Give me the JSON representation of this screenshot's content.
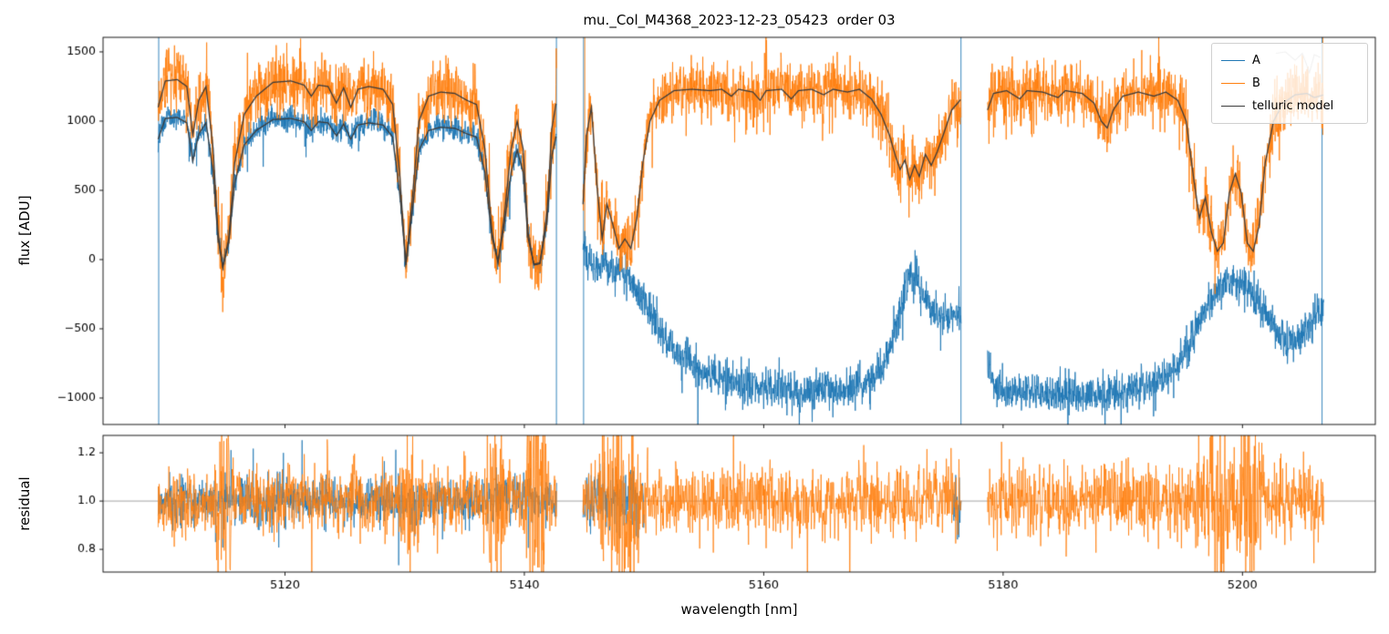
{
  "chart_data": {
    "type": "line",
    "title": "mu._Col_M4368_2023-12-23_05423  order 03",
    "xlabel": "wavelength [nm]",
    "xlim": [
      5104.8,
      5211.1
    ],
    "xticks": [
      {
        "v": 5120,
        "label": "5120"
      },
      {
        "v": 5140,
        "label": "5140"
      },
      {
        "v": 5160,
        "label": "5160"
      },
      {
        "v": 5180,
        "label": "5180"
      },
      {
        "v": 5200,
        "label": "5200"
      }
    ],
    "panels": {
      "flux": {
        "ylabel": "flux [ADU]",
        "ylim": [
          -1191,
          1605
        ],
        "yticks": [
          {
            "v": -1000,
            "label": "−1000"
          },
          {
            "v": -500,
            "label": "−500"
          },
          {
            "v": 0,
            "label": "0"
          },
          {
            "v": 500,
            "label": "500"
          },
          {
            "v": 1000,
            "label": "1000"
          },
          {
            "v": 1500,
            "label": "1500"
          }
        ]
      },
      "residual": {
        "ylabel": "residual",
        "ylim": [
          0.706,
          1.272
        ],
        "yticks": [
          {
            "v": 0.8,
            "label": "0.8"
          },
          {
            "v": 1.0,
            "label": "1.0"
          },
          {
            "v": 1.2,
            "label": "1.2"
          }
        ],
        "reference_line": 1.0
      }
    },
    "legend": [
      {
        "label": "A",
        "color": "#1f77b4"
      },
      {
        "label": "B",
        "color": "#ff7f0e"
      },
      {
        "label": "telluric model",
        "color": "#3b3b3b"
      }
    ],
    "segments": [
      {
        "xrange": [
          5109.4,
          5142.7
        ],
        "b_sigma": 115,
        "a_sigma": 45,
        "a_scale": 0.79,
        "b_env": [
          [
            5109.4,
            1100
          ],
          [
            5110.0,
            1290
          ],
          [
            5111.0,
            1300
          ],
          [
            5111.8,
            1250
          ],
          [
            5112.3,
            900
          ],
          [
            5112.8,
            1150
          ],
          [
            5113.4,
            1250
          ],
          [
            5114.0,
            800
          ],
          [
            5114.4,
            200
          ],
          [
            5114.8,
            -60
          ],
          [
            5115.3,
            150
          ],
          [
            5115.8,
            700
          ],
          [
            5116.6,
            1050
          ],
          [
            5117.6,
            1180
          ],
          [
            5119.0,
            1280
          ],
          [
            5120.5,
            1290
          ],
          [
            5121.6,
            1260
          ],
          [
            5122.2,
            1180
          ],
          [
            5122.8,
            1260
          ],
          [
            5123.6,
            1250
          ],
          [
            5124.3,
            1130
          ],
          [
            5124.9,
            1240
          ],
          [
            5125.5,
            1100
          ],
          [
            5126.1,
            1230
          ],
          [
            5127.0,
            1250
          ],
          [
            5128.2,
            1230
          ],
          [
            5129.0,
            1120
          ],
          [
            5129.6,
            600
          ],
          [
            5130.1,
            -40
          ],
          [
            5130.6,
            400
          ],
          [
            5131.2,
            1000
          ],
          [
            5132.0,
            1180
          ],
          [
            5133.0,
            1210
          ],
          [
            5134.2,
            1200
          ],
          [
            5135.2,
            1150
          ],
          [
            5136.0,
            1120
          ],
          [
            5136.7,
            800
          ],
          [
            5137.3,
            200
          ],
          [
            5137.8,
            -20
          ],
          [
            5138.3,
            300
          ],
          [
            5138.9,
            800
          ],
          [
            5139.4,
            1000
          ],
          [
            5139.9,
            800
          ],
          [
            5140.3,
            200
          ],
          [
            5140.8,
            -40
          ],
          [
            5141.3,
            -30
          ],
          [
            5141.9,
            350
          ],
          [
            5142.3,
            950
          ],
          [
            5142.7,
            1150
          ]
        ]
      },
      {
        "xrange": [
          5144.9,
          5176.5
        ],
        "b_sigma": 110,
        "a_sigma": 70,
        "b_env": [
          [
            5144.9,
            400
          ],
          [
            5145.2,
            900
          ],
          [
            5145.6,
            1100
          ],
          [
            5146.1,
            500
          ],
          [
            5146.5,
            150
          ],
          [
            5146.9,
            400
          ],
          [
            5147.4,
            250
          ],
          [
            5147.9,
            80
          ],
          [
            5148.4,
            150
          ],
          [
            5148.9,
            80
          ],
          [
            5149.4,
            300
          ],
          [
            5149.9,
            700
          ],
          [
            5150.5,
            1000
          ],
          [
            5151.3,
            1150
          ],
          [
            5152.5,
            1220
          ],
          [
            5154.0,
            1230
          ],
          [
            5155.5,
            1220
          ],
          [
            5156.5,
            1230
          ],
          [
            5157.3,
            1180
          ],
          [
            5157.9,
            1230
          ],
          [
            5159.1,
            1210
          ],
          [
            5159.7,
            1150
          ],
          [
            5160.2,
            1220
          ],
          [
            5161.5,
            1230
          ],
          [
            5162.3,
            1160
          ],
          [
            5162.9,
            1220
          ],
          [
            5164.0,
            1230
          ],
          [
            5165.0,
            1190
          ],
          [
            5165.8,
            1230
          ],
          [
            5167.0,
            1210
          ],
          [
            5168.0,
            1230
          ],
          [
            5169.0,
            1160
          ],
          [
            5169.8,
            1050
          ],
          [
            5170.5,
            900
          ],
          [
            5171.0,
            750
          ],
          [
            5171.4,
            650
          ],
          [
            5171.8,
            720
          ],
          [
            5172.2,
            580
          ],
          [
            5172.6,
            680
          ],
          [
            5173.0,
            600
          ],
          [
            5173.5,
            760
          ],
          [
            5174.0,
            680
          ],
          [
            5174.5,
            780
          ],
          [
            5175.0,
            900
          ],
          [
            5175.7,
            1080
          ],
          [
            5176.5,
            1160
          ]
        ],
        "a_env": [
          [
            5144.9,
            80
          ],
          [
            5145.4,
            10
          ],
          [
            5146.0,
            -70
          ],
          [
            5146.6,
            0
          ],
          [
            5147.3,
            -120
          ],
          [
            5148.0,
            -60
          ],
          [
            5148.8,
            -160
          ],
          [
            5149.6,
            -260
          ],
          [
            5150.5,
            -390
          ],
          [
            5151.5,
            -530
          ],
          [
            5152.6,
            -660
          ],
          [
            5154.0,
            -770
          ],
          [
            5155.5,
            -830
          ],
          [
            5157.0,
            -870
          ],
          [
            5158.5,
            -905
          ],
          [
            5160.0,
            -925
          ],
          [
            5161.5,
            -935
          ],
          [
            5163.0,
            -960
          ],
          [
            5164.5,
            -930
          ],
          [
            5166.0,
            -950
          ],
          [
            5167.5,
            -930
          ],
          [
            5169.0,
            -880
          ],
          [
            5170.0,
            -780
          ],
          [
            5170.8,
            -600
          ],
          [
            5171.4,
            -380
          ],
          [
            5171.9,
            -180
          ],
          [
            5172.3,
            -80
          ],
          [
            5172.7,
            -130
          ],
          [
            5173.2,
            -230
          ],
          [
            5173.8,
            -330
          ],
          [
            5174.5,
            -420
          ],
          [
            5175.4,
            -430
          ],
          [
            5176.5,
            -380
          ]
        ]
      },
      {
        "xrange": [
          5178.7,
          5206.8
        ],
        "b_sigma": 110,
        "a_sigma": 70,
        "b_env": [
          [
            5178.7,
            1080
          ],
          [
            5179.2,
            1200
          ],
          [
            5180.3,
            1220
          ],
          [
            5181.4,
            1160
          ],
          [
            5182.0,
            1220
          ],
          [
            5183.3,
            1210
          ],
          [
            5184.6,
            1170
          ],
          [
            5185.2,
            1220
          ],
          [
            5186.6,
            1200
          ],
          [
            5187.6,
            1130
          ],
          [
            5188.2,
            1000
          ],
          [
            5188.7,
            950
          ],
          [
            5189.2,
            1080
          ],
          [
            5190.0,
            1180
          ],
          [
            5191.3,
            1210
          ],
          [
            5192.6,
            1180
          ],
          [
            5193.6,
            1210
          ],
          [
            5194.6,
            1150
          ],
          [
            5195.3,
            1000
          ],
          [
            5195.9,
            600
          ],
          [
            5196.4,
            300
          ],
          [
            5196.9,
            450
          ],
          [
            5197.4,
            200
          ],
          [
            5197.9,
            60
          ],
          [
            5198.4,
            120
          ],
          [
            5198.9,
            480
          ],
          [
            5199.4,
            620
          ],
          [
            5199.9,
            480
          ],
          [
            5200.4,
            120
          ],
          [
            5200.9,
            60
          ],
          [
            5201.4,
            250
          ],
          [
            5201.9,
            700
          ],
          [
            5202.6,
            1000
          ],
          [
            5203.4,
            1130
          ],
          [
            5204.4,
            1190
          ],
          [
            5205.4,
            1200
          ],
          [
            5206.0,
            1170
          ],
          [
            5206.8,
            1190
          ]
        ],
        "a_env": [
          [
            5178.7,
            -780
          ],
          [
            5179.4,
            -920
          ],
          [
            5180.8,
            -960
          ],
          [
            5182.3,
            -940
          ],
          [
            5183.8,
            -980
          ],
          [
            5185.3,
            -950
          ],
          [
            5186.8,
            -970
          ],
          [
            5188.3,
            -950
          ],
          [
            5189.8,
            -960
          ],
          [
            5191.3,
            -930
          ],
          [
            5192.8,
            -900
          ],
          [
            5194.0,
            -830
          ],
          [
            5195.0,
            -700
          ],
          [
            5196.0,
            -520
          ],
          [
            5197.0,
            -350
          ],
          [
            5198.0,
            -230
          ],
          [
            5199.0,
            -170
          ],
          [
            5200.0,
            -180
          ],
          [
            5201.0,
            -260
          ],
          [
            5202.0,
            -400
          ],
          [
            5203.0,
            -530
          ],
          [
            5203.8,
            -600
          ],
          [
            5204.6,
            -570
          ],
          [
            5205.4,
            -520
          ],
          [
            5206.0,
            -420
          ],
          [
            5206.8,
            -320
          ]
        ]
      }
    ],
    "residual_data": {
      "b_sigma": 0.07,
      "b_amp_boost": {
        "threshold": 650,
        "factor": 2.4
      },
      "a_ranges": [
        {
          "range": [
            5109.4,
            5142.7
          ],
          "sigma": 0.048
        },
        {
          "range": [
            5144.9,
            5150.0
          ],
          "sigma": 0.07
        },
        {
          "range": [
            5175.8,
            5176.5
          ],
          "sigma": 0.07
        }
      ]
    },
    "edge_spikes": [
      {
        "x": 5109.45,
        "series": "A"
      },
      {
        "x": 5142.68,
        "series": "A"
      },
      {
        "x": 5144.95,
        "series": "A"
      },
      {
        "x": 5145.05,
        "series": "B",
        "y0": 100
      },
      {
        "x": 5176.48,
        "series": "A"
      },
      {
        "x": 5206.65,
        "series": "A"
      },
      {
        "x": 5206.72,
        "series": "B",
        "y0": 900
      }
    ],
    "extra_gray_line": [
      [
        5202.8,
        1490
      ],
      [
        5203.6,
        1500
      ],
      [
        5204.4,
        1440
      ],
      [
        5205.0,
        1490
      ],
      [
        5205.6,
        1350
      ],
      [
        5206.0,
        1480
      ],
      [
        5206.5,
        1460
      ]
    ]
  }
}
